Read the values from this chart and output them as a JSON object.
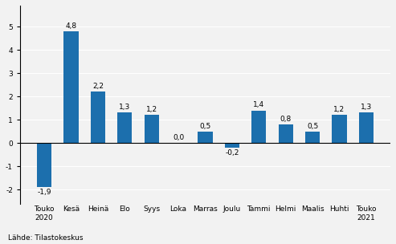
{
  "categories": [
    "Touko\n2020",
    "Kesä",
    "Heinä",
    "Elo",
    "Syys",
    "Loka",
    "Marras",
    "Joulu",
    "Tammi",
    "Helmi",
    "Maalis",
    "Huhti",
    "Touko\n2021"
  ],
  "values": [
    -1.9,
    4.8,
    2.2,
    1.3,
    1.2,
    0.0,
    0.5,
    -0.2,
    1.4,
    0.8,
    0.5,
    1.2,
    1.3
  ],
  "bar_color": "#1c6fad",
  "label_fontsize": 6.5,
  "tick_fontsize": 6.5,
  "source_text": "Lähde: Tilastokeskus",
  "ylim": [
    -2.6,
    5.9
  ],
  "yticks": [
    -2,
    -1,
    0,
    1,
    2,
    3,
    4,
    5
  ],
  "background_color": "#f2f2f2",
  "grid_color": "#ffffff",
  "bar_width": 0.55
}
